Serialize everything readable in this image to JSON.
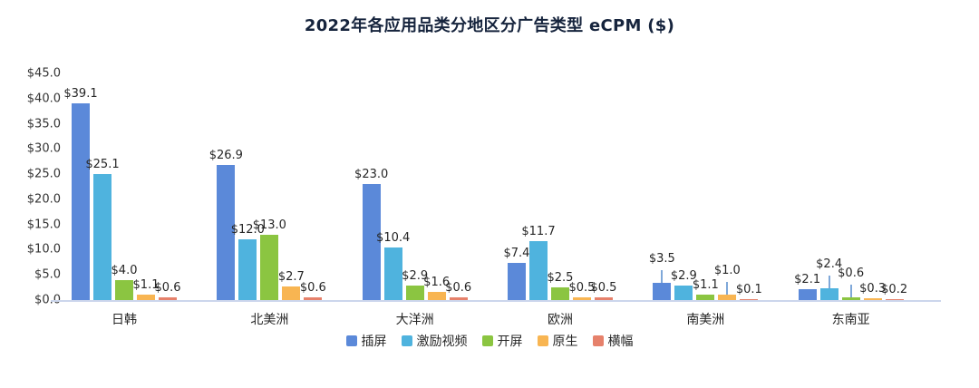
{
  "title": "2022年各应用品类分地区分广告类型 eCPM ($)",
  "colors": {
    "title_text": "#16243d",
    "label_text": "#262626",
    "tick_text": "#333333",
    "axis_line": "#ccd6ec",
    "leader_line": "#7fa8d9",
    "background": "#ffffff"
  },
  "chart_data": {
    "type": "bar",
    "title": "2022年各应用品类分地区分广告类型 eCPM ($)",
    "categories": [
      "日韩",
      "北美洲",
      "大洋洲",
      "欧洲",
      "南美洲",
      "东南亚"
    ],
    "series": [
      {
        "name": "插屏",
        "color": "#5b89d9",
        "values": [
          39.1,
          26.9,
          23.0,
          7.4,
          3.5,
          2.1
        ]
      },
      {
        "name": "激励视频",
        "color": "#4fb3de",
        "values": [
          25.1,
          12.0,
          10.4,
          11.7,
          2.9,
          2.4
        ]
      },
      {
        "name": "开屏",
        "color": "#8bc541",
        "values": [
          4.0,
          13.0,
          2.9,
          2.5,
          1.1,
          0.6
        ]
      },
      {
        "name": "原生",
        "color": "#f8b552",
        "values": [
          1.1,
          2.7,
          1.6,
          0.5,
          1.0,
          0.3
        ]
      },
      {
        "name": "横幅",
        "color": "#e6816b",
        "values": [
          0.6,
          0.6,
          0.6,
          0.5,
          0.1,
          0.2
        ]
      }
    ],
    "value_prefix": "$",
    "value_decimals": 1,
    "axis": {
      "min": 0,
      "max": 45,
      "step": 5,
      "tick_prefix": "$",
      "tick_decimals": 1
    },
    "grid": false,
    "legend_position": "bottom",
    "label_leader_lines": [
      {
        "category": "南美洲",
        "series": "插屏"
      },
      {
        "category": "南美洲",
        "series": "原生"
      },
      {
        "category": "东南亚",
        "series": "激励视频"
      },
      {
        "category": "东南亚",
        "series": "开屏"
      }
    ]
  }
}
